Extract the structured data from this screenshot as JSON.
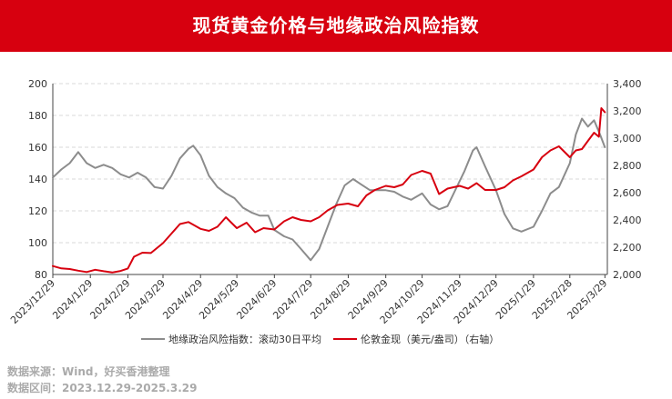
{
  "header": {
    "title": "现货黄金价格与地缘政治风险指数"
  },
  "footer": {
    "source": "数据来源：Wind，好买香港整理",
    "range": "数据区间：2023.12.29-2025.3.29"
  },
  "chart_data": {
    "type": "line",
    "title": "现货黄金价格与地缘政治风险指数",
    "x_start": "2023-12-29",
    "x_ticks": [
      "2023/12/29",
      "2024/1/29",
      "2024/2/29",
      "2024/3/29",
      "2024/4/29",
      "2024/5/29",
      "2024/6/29",
      "2024/7/29",
      "2024/8/29",
      "2024/9/29",
      "2024/10/29",
      "2024/11/29",
      "2024/12/29",
      "2025/1/29",
      "2025/2/28",
      "2025/3/29"
    ],
    "x_tick_dates": [
      "2023-12-29",
      "2024-01-29",
      "2024-02-29",
      "2024-03-29",
      "2024-04-29",
      "2024-05-29",
      "2024-06-29",
      "2024-07-29",
      "2024-08-29",
      "2024-09-29",
      "2024-10-29",
      "2024-11-29",
      "2024-12-29",
      "2025-01-29",
      "2025-02-28",
      "2025-03-29"
    ],
    "y_left": {
      "min": 80,
      "max": 200,
      "ticks": [
        80,
        100,
        120,
        140,
        160,
        180,
        200
      ]
    },
    "y_right": {
      "min": 2000,
      "max": 3400,
      "ticks": [
        "2,000",
        "2,200",
        "2,400",
        "2,600",
        "2,800",
        "3,000",
        "3,200",
        "3,400"
      ],
      "tick_values": [
        2000,
        2200,
        2400,
        2600,
        2800,
        3000,
        3200,
        3400
      ]
    },
    "grid": "horizontal-dashed",
    "legend_position": "bottom",
    "series": [
      {
        "name": "地缘政治风险指数：滚动30日平均",
        "axis": "left",
        "color": "#8c8c8c",
        "points": [
          [
            "2023-12-29",
            141
          ],
          [
            "2024-01-05",
            146
          ],
          [
            "2024-01-12",
            150
          ],
          [
            "2024-01-19",
            157
          ],
          [
            "2024-01-26",
            150
          ],
          [
            "2024-02-02",
            147
          ],
          [
            "2024-02-09",
            149
          ],
          [
            "2024-02-16",
            147
          ],
          [
            "2024-02-23",
            143
          ],
          [
            "2024-03-01",
            141
          ],
          [
            "2024-03-08",
            144
          ],
          [
            "2024-03-15",
            141
          ],
          [
            "2024-03-22",
            135
          ],
          [
            "2024-03-29",
            134
          ],
          [
            "2024-04-05",
            142
          ],
          [
            "2024-04-12",
            153
          ],
          [
            "2024-04-19",
            159
          ],
          [
            "2024-04-23",
            161
          ],
          [
            "2024-04-29",
            155
          ],
          [
            "2024-05-06",
            142
          ],
          [
            "2024-05-13",
            135
          ],
          [
            "2024-05-20",
            131
          ],
          [
            "2024-05-27",
            128
          ],
          [
            "2024-06-03",
            122
          ],
          [
            "2024-06-10",
            119
          ],
          [
            "2024-06-17",
            117
          ],
          [
            "2024-06-24",
            117
          ],
          [
            "2024-06-29",
            108
          ],
          [
            "2024-07-07",
            104
          ],
          [
            "2024-07-14",
            102
          ],
          [
            "2024-07-21",
            96
          ],
          [
            "2024-07-29",
            89
          ],
          [
            "2024-08-05",
            96
          ],
          [
            "2024-08-12",
            110
          ],
          [
            "2024-08-19",
            124
          ],
          [
            "2024-08-26",
            136
          ],
          [
            "2024-09-02",
            140
          ],
          [
            "2024-09-08",
            137
          ],
          [
            "2024-09-16",
            133
          ],
          [
            "2024-09-23",
            133
          ],
          [
            "2024-09-29",
            133
          ],
          [
            "2024-10-06",
            132
          ],
          [
            "2024-10-13",
            129
          ],
          [
            "2024-10-20",
            127
          ],
          [
            "2024-10-29",
            131
          ],
          [
            "2024-11-05",
            124
          ],
          [
            "2024-11-12",
            121
          ],
          [
            "2024-11-19",
            123
          ],
          [
            "2024-11-26",
            134
          ],
          [
            "2024-12-03",
            145
          ],
          [
            "2024-12-10",
            158
          ],
          [
            "2024-12-13",
            160
          ],
          [
            "2024-12-20",
            148
          ],
          [
            "2024-12-29",
            133
          ],
          [
            "2025-01-05",
            118
          ],
          [
            "2025-01-12",
            109
          ],
          [
            "2025-01-19",
            107
          ],
          [
            "2025-01-29",
            110
          ],
          [
            "2025-02-05",
            120
          ],
          [
            "2025-02-12",
            131
          ],
          [
            "2025-02-19",
            135
          ],
          [
            "2025-02-28",
            150
          ],
          [
            "2025-03-05",
            168
          ],
          [
            "2025-03-10",
            178
          ],
          [
            "2025-03-15",
            173
          ],
          [
            "2025-03-20",
            177
          ],
          [
            "2025-03-25",
            168
          ],
          [
            "2025-03-29",
            160
          ]
        ]
      },
      {
        "name": "伦敦金现（美元/盎司）（右轴）",
        "axis": "right",
        "color": "#d7000f",
        "points": [
          [
            "2023-12-29",
            2062
          ],
          [
            "2024-01-05",
            2045
          ],
          [
            "2024-01-12",
            2040
          ],
          [
            "2024-01-19",
            2028
          ],
          [
            "2024-01-26",
            2018
          ],
          [
            "2024-02-02",
            2035
          ],
          [
            "2024-02-09",
            2024
          ],
          [
            "2024-02-16",
            2015
          ],
          [
            "2024-02-23",
            2026
          ],
          [
            "2024-02-29",
            2044
          ],
          [
            "2024-03-05",
            2130
          ],
          [
            "2024-03-12",
            2160
          ],
          [
            "2024-03-19",
            2157
          ],
          [
            "2024-03-29",
            2230
          ],
          [
            "2024-04-05",
            2300
          ],
          [
            "2024-04-12",
            2370
          ],
          [
            "2024-04-19",
            2385
          ],
          [
            "2024-04-29",
            2335
          ],
          [
            "2024-05-06",
            2320
          ],
          [
            "2024-05-13",
            2350
          ],
          [
            "2024-05-20",
            2420
          ],
          [
            "2024-05-29",
            2340
          ],
          [
            "2024-06-06",
            2380
          ],
          [
            "2024-06-13",
            2310
          ],
          [
            "2024-06-20",
            2340
          ],
          [
            "2024-06-29",
            2330
          ],
          [
            "2024-07-07",
            2390
          ],
          [
            "2024-07-14",
            2420
          ],
          [
            "2024-07-21",
            2400
          ],
          [
            "2024-07-29",
            2390
          ],
          [
            "2024-08-05",
            2420
          ],
          [
            "2024-08-12",
            2470
          ],
          [
            "2024-08-20",
            2510
          ],
          [
            "2024-08-29",
            2520
          ],
          [
            "2024-09-06",
            2500
          ],
          [
            "2024-09-13",
            2580
          ],
          [
            "2024-09-20",
            2620
          ],
          [
            "2024-09-29",
            2650
          ],
          [
            "2024-10-06",
            2640
          ],
          [
            "2024-10-13",
            2660
          ],
          [
            "2024-10-20",
            2730
          ],
          [
            "2024-10-29",
            2760
          ],
          [
            "2024-11-05",
            2740
          ],
          [
            "2024-11-12",
            2590
          ],
          [
            "2024-11-19",
            2630
          ],
          [
            "2024-11-29",
            2650
          ],
          [
            "2024-12-06",
            2630
          ],
          [
            "2024-12-13",
            2670
          ],
          [
            "2024-12-20",
            2620
          ],
          [
            "2024-12-29",
            2620
          ],
          [
            "2025-01-05",
            2640
          ],
          [
            "2025-01-12",
            2690
          ],
          [
            "2025-01-19",
            2720
          ],
          [
            "2025-01-29",
            2770
          ],
          [
            "2025-02-05",
            2860
          ],
          [
            "2025-02-12",
            2910
          ],
          [
            "2025-02-19",
            2940
          ],
          [
            "2025-02-28",
            2860
          ],
          [
            "2025-03-05",
            2910
          ],
          [
            "2025-03-10",
            2920
          ],
          [
            "2025-03-15",
            2980
          ],
          [
            "2025-03-20",
            3040
          ],
          [
            "2025-03-24",
            3010
          ],
          [
            "2025-03-26",
            3220
          ],
          [
            "2025-03-29",
            3190
          ]
        ]
      }
    ]
  }
}
